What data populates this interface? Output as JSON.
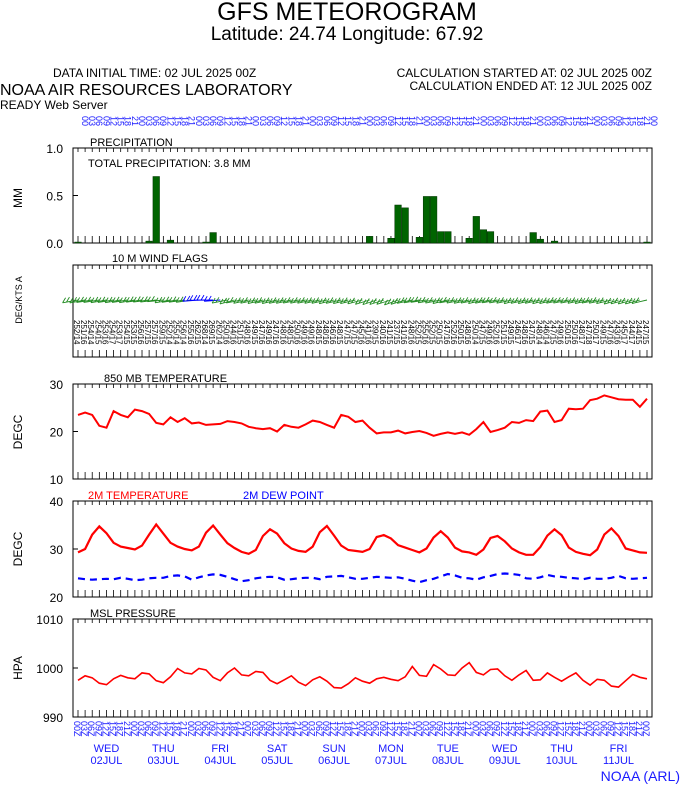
{
  "header": {
    "title": "GFS METEOROGRAM",
    "subtitle": "Latitude: 24.74 Longitude:  67.92",
    "init_time": "DATA INITIAL TIME: 02 JUL 2025 00Z",
    "calc_started": "CALCULATION STARTED AT: 02 JUL 2025 00Z",
    "calc_ended": "CALCULATION ENDED AT: 12 JUL 2025 00Z",
    "lab": "NOAA AIR RESOURCES LABORATORY",
    "server": "READY Web Server",
    "credit": "NOAA (ARL)"
  },
  "colors": {
    "precip": "#006400",
    "temperature": "#ff0000",
    "dewpoint": "#0000ff",
    "wind_barbs": "#228b22",
    "axis_text_blue": "#1a1aff"
  },
  "chart_data": [
    {
      "type": "bar",
      "title": "PRECIPITATION",
      "annotation": "TOTAL PRECIPITATION:   3.8 MM",
      "ylabel": "MM",
      "ylim": [
        0,
        1.0
      ],
      "yticks": [
        "0.0",
        "0.5",
        "1.0"
      ],
      "x_step_hours": 3,
      "values": [
        0.01,
        0,
        0,
        0,
        0,
        0,
        0,
        0,
        0,
        0,
        0.02,
        0.7,
        0,
        0.03,
        0,
        0,
        0,
        0,
        0.01,
        0.11,
        0,
        0,
        0,
        0,
        0,
        0,
        0,
        0,
        0,
        0,
        0,
        0,
        0,
        0,
        0,
        0,
        0,
        0,
        0,
        0,
        0,
        0.07,
        0,
        0,
        0.05,
        0.4,
        0.37,
        0,
        0.06,
        0.49,
        0.49,
        0.12,
        0.12,
        0,
        0,
        0.05,
        0.28,
        0.14,
        0.12,
        0,
        0,
        0,
        0,
        0,
        0.11,
        0.04,
        0,
        0.02,
        0,
        0,
        0,
        0,
        0,
        0,
        0,
        0,
        0,
        0,
        0,
        0,
        0.01
      ]
    },
    {
      "type": "wind_barbs",
      "title": "10 M  WIND FLAGS",
      "ylabel": "DEG/KTS  A",
      "x_step_hours": 3,
      "directions_deg": [
        252,
        251,
        254,
        254,
        253,
        254,
        253,
        254,
        253,
        256,
        257,
        257,
        259,
        252,
        255,
        256,
        255,
        262,
        268,
        269,
        262,
        250,
        244,
        251,
        248,
        249,
        247,
        249,
        247,
        248,
        248,
        250,
        249,
        249,
        248,
        248,
        246,
        248,
        247,
        247,
        245,
        241,
        239,
        240,
        241,
        237,
        241,
        248,
        252,
        255,
        252,
        250,
        247,
        252,
        250,
        248,
        250,
        247,
        249,
        252,
        251,
        249,
        246,
        248,
        247,
        248,
        246,
        247,
        249,
        250,
        250,
        248,
        247,
        250,
        249,
        247,
        243,
        245,
        244,
        244,
        247
      ],
      "speeds_kts": [
        14,
        16,
        14,
        15,
        16,
        17,
        17,
        15,
        15,
        16,
        15,
        16,
        15,
        14,
        14,
        14,
        16,
        15,
        14,
        15,
        14,
        16,
        16,
        15,
        16,
        15,
        16,
        16,
        16,
        16,
        15,
        16,
        16,
        16,
        15,
        16,
        16,
        15,
        15,
        15,
        16,
        16,
        15,
        16,
        15,
        15,
        16,
        16,
        15,
        16,
        15,
        15,
        16,
        16,
        15,
        16,
        14,
        15,
        16,
        16,
        15,
        15,
        17,
        16,
        15,
        14,
        14,
        15,
        16,
        15,
        16,
        17,
        18,
        17,
        15,
        16,
        16,
        17,
        17,
        15,
        15
      ]
    },
    {
      "type": "line",
      "title": "850 MB  TEMPERATURE",
      "ylabel": "DEGC",
      "ylim": [
        10,
        30
      ],
      "yticks": [
        "10",
        "20",
        "30"
      ],
      "x_step_hours": 3,
      "series": [
        {
          "values": [
            23.5,
            24.0,
            23.5,
            21.2,
            20.8,
            24.3,
            23.5,
            23.0,
            24.6,
            24.3,
            23.7,
            21.8,
            21.5,
            23.0,
            22.0,
            22.8,
            21.7,
            21.9,
            21.4,
            21.5,
            21.6,
            22.2,
            22.0,
            21.7,
            21.0,
            20.7,
            20.5,
            20.7,
            20.0,
            21.4,
            21.0,
            20.8,
            21.5,
            22.3,
            22.0,
            21.4,
            20.8,
            23.5,
            23.1,
            22.0,
            22.3,
            20.8,
            19.6,
            19.8,
            19.8,
            20.2,
            19.6,
            19.9,
            20.1,
            19.7,
            19.1,
            19.5,
            19.8,
            19.5,
            19.8,
            19.3,
            20.5,
            22.0,
            19.9,
            20.3,
            20.8,
            22.0,
            21.8,
            22.4,
            22.2,
            24.2,
            24.4,
            22.0,
            22.4,
            24.8,
            24.7,
            24.8,
            26.6,
            26.9,
            27.6,
            27.2,
            26.8,
            26.7,
            26.7,
            25.2,
            26.9
          ]
        }
      ]
    },
    {
      "type": "line",
      "title": "2M TEMPERATURE",
      "ylabel": "DEGC",
      "ylim": [
        20,
        40
      ],
      "yticks": [
        "20",
        "30",
        "40"
      ],
      "x_step_hours": 3,
      "series": [
        {
          "name": "2M TEMPERATURE",
          "values": [
            29.3,
            30.0,
            33.0,
            34.7,
            33.3,
            31.3,
            30.5,
            30.2,
            29.9,
            30.7,
            33.0,
            35.1,
            33.2,
            31.3,
            30.5,
            30.0,
            29.7,
            30.5,
            33.4,
            34.9,
            33.0,
            31.2,
            30.2,
            29.4,
            29.0,
            29.8,
            32.7,
            34.1,
            33.2,
            31.2,
            30.1,
            29.6,
            29.4,
            30.5,
            33.5,
            34.8,
            32.8,
            30.7,
            29.8,
            29.6,
            29.4,
            30.0,
            32.5,
            32.9,
            32.2,
            30.8,
            30.3,
            29.8,
            29.3,
            30.1,
            32.4,
            33.7,
            32.4,
            30.3,
            29.5,
            29.3,
            28.8,
            29.9,
            32.3,
            32.7,
            31.6,
            30.1,
            29.3,
            28.8,
            28.8,
            30.4,
            32.8,
            34.1,
            32.9,
            30.3,
            29.4,
            29.0,
            28.7,
            29.9,
            33.0,
            34.3,
            32.7,
            30.1,
            29.7,
            29.3,
            29.2
          ]
        },
        {
          "name": "2M  DEW POINT",
          "values": [
            23.9,
            23.7,
            23.6,
            23.7,
            23.8,
            23.7,
            24.0,
            23.8,
            23.5,
            23.6,
            23.9,
            24.0,
            24.0,
            24.4,
            24.5,
            24.3,
            23.6,
            24.1,
            24.5,
            24.7,
            24.6,
            24.2,
            23.7,
            23.3,
            23.5,
            23.9,
            24.1,
            24.2,
            24.1,
            23.6,
            23.7,
            23.9,
            24.0,
            24.0,
            23.7,
            24.2,
            24.3,
            24.4,
            24.1,
            23.8,
            23.8,
            24.0,
            24.2,
            24.1,
            24.0,
            24.1,
            23.8,
            23.4,
            23.1,
            23.5,
            23.8,
            24.3,
            24.8,
            24.5,
            24.0,
            23.9,
            23.6,
            24.1,
            24.4,
            24.8,
            24.9,
            24.8,
            24.6,
            23.9,
            23.8,
            24.1,
            24.6,
            24.3,
            24.2,
            24.0,
            23.9,
            23.7,
            24.0,
            23.8,
            23.8,
            24.0,
            24.4,
            23.9,
            23.8,
            23.9,
            24.0
          ]
        }
      ]
    },
    {
      "type": "line",
      "title": "MSL PRESSURE",
      "ylabel": "HPA",
      "ylim": [
        990,
        1010
      ],
      "yticks": [
        "990",
        "1000",
        "1010"
      ],
      "x_step_hours": 3,
      "series": [
        {
          "values": [
            997.5,
            998.4,
            998.0,
            996.9,
            996.6,
            997.8,
            998.5,
            998.0,
            997.8,
            999.0,
            998.8,
            997.4,
            997.0,
            998.2,
            999.9,
            999.0,
            998.8,
            999.9,
            999.6,
            998.1,
            997.4,
            999.0,
            1000.0,
            998.6,
            998.4,
            999.3,
            999.1,
            997.5,
            996.8,
            997.6,
            998.4,
            997.1,
            996.4,
            997.6,
            998.2,
            997.3,
            996.0,
            995.9,
            996.8,
            998.0,
            997.3,
            996.9,
            997.8,
            998.1,
            997.7,
            997.4,
            998.2,
            1000.3,
            998.5,
            998.3,
            1000.7,
            999.8,
            998.6,
            998.5,
            1000.0,
            1001.1,
            999.1,
            998.6,
            999.7,
            999.8,
            998.4,
            997.5,
            998.6,
            999.5,
            997.5,
            997.6,
            999.0,
            998.1,
            997.3,
            998.2,
            999.0,
            997.5,
            996.5,
            997.7,
            997.5,
            996.3,
            996.1,
            997.4,
            998.7,
            998.1,
            997.8
          ]
        }
      ]
    }
  ],
  "x_axis": {
    "start": "02 JUL 2025 00Z",
    "step_hours": 3,
    "hour_labels": [
      "00",
      "03",
      "06",
      "09",
      "12",
      "15",
      "18",
      "21"
    ],
    "days": [
      {
        "weekday": "WED",
        "date": "02JUL"
      },
      {
        "weekday": "THU",
        "date": "03JUL"
      },
      {
        "weekday": "FRI",
        "date": "04JUL"
      },
      {
        "weekday": "SAT",
        "date": "05JUL"
      },
      {
        "weekday": "SUN",
        "date": "06JUL"
      },
      {
        "weekday": "MON",
        "date": "07JUL"
      },
      {
        "weekday": "TUE",
        "date": "08JUL"
      },
      {
        "weekday": "WED",
        "date": "09JUL"
      },
      {
        "weekday": "THU",
        "date": "10JUL"
      },
      {
        "weekday": "FRI",
        "date": "11JUL"
      }
    ]
  }
}
